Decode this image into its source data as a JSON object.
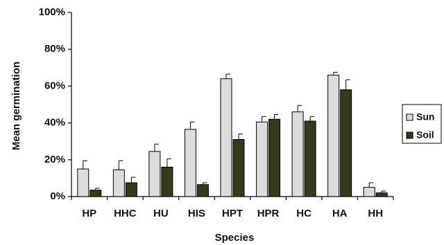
{
  "chart_data": {
    "type": "bar",
    "title": "",
    "xlabel": "Species",
    "ylabel": "Mean germination",
    "ylim": [
      0,
      100
    ],
    "yticks": [
      "0%",
      "20%",
      "40%",
      "60%",
      "80%",
      "100%"
    ],
    "categories": [
      "HP",
      "HHC",
      "HU",
      "HIS",
      "HPT",
      "HPR",
      "HC",
      "HA",
      "HH"
    ],
    "series": [
      {
        "name": "Sun",
        "values": [
          15,
          14.5,
          24.5,
          36.5,
          64,
          40.5,
          46,
          66,
          5
        ],
        "errors": [
          4.5,
          5,
          4,
          4,
          2.5,
          3,
          3.5,
          1.5,
          2.5
        ],
        "color": "#dcdcdc"
      },
      {
        "name": "Soil",
        "values": [
          3.5,
          7.5,
          16,
          6.5,
          31,
          42,
          41,
          58,
          2
        ],
        "errors": [
          1,
          3,
          4.5,
          1,
          3,
          2.5,
          2.5,
          5.5,
          1
        ],
        "color": "#353a1e"
      }
    ],
    "grid": false,
    "legend_position": "right"
  }
}
